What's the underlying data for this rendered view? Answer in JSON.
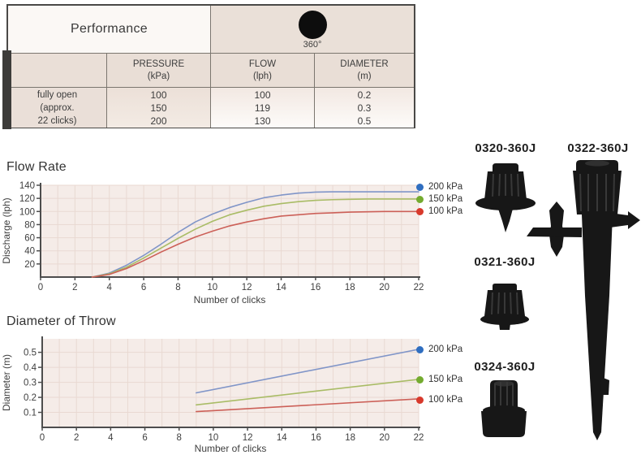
{
  "table": {
    "title": "Performance",
    "pattern": {
      "icon": "filled-circle-360",
      "label": "360°"
    },
    "header": {
      "pressure_label": "PRESSURE",
      "pressure_unit": "(kPa)",
      "flow_label": "FLOW",
      "flow_unit": "(lph)",
      "diameter_label": "DIAMETER",
      "diameter_unit": "(m)"
    },
    "row_label": {
      "line1": "fully open",
      "line2": "(approx.",
      "line3": "22 clicks)"
    },
    "rows": [
      {
        "pressure": "100",
        "flow": "100",
        "diameter": "0.2"
      },
      {
        "pressure": "150",
        "flow": "119",
        "diameter": "0.3"
      },
      {
        "pressure": "200",
        "flow": "130",
        "diameter": "0.5"
      }
    ]
  },
  "chart_data": [
    {
      "type": "line",
      "title": "Flow Rate",
      "xlabel": "Number of clicks",
      "ylabel": "Discharge (lph)",
      "xlim": [
        0,
        22
      ],
      "ylim": [
        0,
        140
      ],
      "grid": true,
      "legend_position": "right",
      "xticks": [
        {
          "v": 0,
          "t": "0"
        },
        {
          "v": 2,
          "t": "2"
        },
        {
          "v": 4,
          "t": "4"
        },
        {
          "v": 6,
          "t": "6"
        },
        {
          "v": 8,
          "t": "8"
        },
        {
          "v": 10,
          "t": "10"
        },
        {
          "v": 12,
          "t": "12"
        },
        {
          "v": 14,
          "t": "14"
        },
        {
          "v": 16,
          "t": "16"
        },
        {
          "v": 18,
          "t": "18"
        },
        {
          "v": 20,
          "t": "20"
        },
        {
          "v": 22,
          "t": "22"
        }
      ],
      "yticks": [
        {
          "v": 20,
          "t": "20"
        },
        {
          "v": 40,
          "t": "40"
        },
        {
          "v": 60,
          "t": "60"
        },
        {
          "v": 80,
          "t": "80"
        },
        {
          "v": 100,
          "t": "100"
        },
        {
          "v": 120,
          "t": "120"
        },
        {
          "v": 140,
          "t": "140"
        }
      ],
      "series": [
        {
          "name": "200 kPa",
          "pressure_kpa": 200,
          "line_color": "#8095c8",
          "dot_color": "#2f6ec0",
          "x": [
            3,
            4,
            5,
            6,
            7,
            8,
            9,
            10,
            11,
            12,
            13,
            14,
            15,
            16,
            17,
            18,
            19,
            20,
            21,
            22
          ],
          "y": [
            0,
            6,
            18,
            33,
            50,
            68,
            84,
            96,
            106,
            114,
            121,
            125,
            128,
            129.5,
            130,
            130,
            130,
            130,
            130,
            130
          ]
        },
        {
          "name": "150 kPa",
          "pressure_kpa": 150,
          "line_color": "#a9bc66",
          "dot_color": "#74ab2f",
          "x": [
            3,
            4,
            5,
            6,
            7,
            8,
            9,
            10,
            11,
            12,
            13,
            14,
            15,
            16,
            17,
            18,
            19,
            20,
            21,
            22
          ],
          "y": [
            0,
            5,
            15,
            29,
            44,
            59,
            73,
            85,
            95,
            102,
            108,
            112,
            115,
            117,
            118,
            118.5,
            119,
            119,
            119,
            119
          ]
        },
        {
          "name": "100 kPa",
          "pressure_kpa": 100,
          "line_color": "#cc6058",
          "dot_color": "#d8392c",
          "x": [
            3,
            4,
            5,
            6,
            7,
            8,
            9,
            10,
            11,
            12,
            13,
            14,
            15,
            16,
            17,
            18,
            19,
            20,
            21,
            22
          ],
          "y": [
            0,
            4,
            13,
            25,
            38,
            50,
            61,
            70,
            78,
            84,
            89,
            93,
            95,
            97,
            98,
            99,
            99.5,
            100,
            100,
            100
          ]
        }
      ]
    },
    {
      "type": "line",
      "title": "Diameter of Throw",
      "xlabel": "Number of clicks",
      "ylabel": "Diameter (m)",
      "xlim": [
        0,
        22
      ],
      "ylim": [
        0,
        0.59
      ],
      "grid": true,
      "legend_position": "right",
      "xticks": [
        {
          "v": 0,
          "t": "0"
        },
        {
          "v": 2,
          "t": "2"
        },
        {
          "v": 4,
          "t": "4"
        },
        {
          "v": 6,
          "t": "6"
        },
        {
          "v": 8,
          "t": "8"
        },
        {
          "v": 10,
          "t": "10"
        },
        {
          "v": 12,
          "t": "12"
        },
        {
          "v": 14,
          "t": "14"
        },
        {
          "v": 16,
          "t": "16"
        },
        {
          "v": 18,
          "t": "18"
        },
        {
          "v": 20,
          "t": "20"
        },
        {
          "v": 22,
          "t": "22"
        }
      ],
      "yticks": [
        {
          "v": 0.1,
          "t": "0.1"
        },
        {
          "v": 0.2,
          "t": "0.2"
        },
        {
          "v": 0.3,
          "t": "0.3"
        },
        {
          "v": 0.4,
          "t": "0.4"
        },
        {
          "v": 0.5,
          "t": "0.5"
        }
      ],
      "series": [
        {
          "name": "200 kPa",
          "pressure_kpa": 200,
          "line_color": "#8095c8",
          "dot_color": "#2f6ec0",
          "x": [
            9,
            22
          ],
          "y": [
            0.23,
            0.52
          ]
        },
        {
          "name": "150 kPa",
          "pressure_kpa": 150,
          "line_color": "#a9bc66",
          "dot_color": "#74ab2f",
          "x": [
            9,
            22
          ],
          "y": [
            0.15,
            0.32
          ]
        },
        {
          "name": "100 kPa",
          "pressure_kpa": 100,
          "line_color": "#cc6058",
          "dot_color": "#d8392c",
          "x": [
            9,
            22
          ],
          "y": [
            0.105,
            0.19
          ]
        }
      ]
    }
  ],
  "products": [
    {
      "code": "0320-360J"
    },
    {
      "code": "0322-360J"
    },
    {
      "code": "0321-360J"
    },
    {
      "code": "0324-360J"
    }
  ],
  "colors": {
    "series_200_line": "#8095c8",
    "series_200_dot": "#2f6ec0",
    "series_150_line": "#a9bc66",
    "series_150_dot": "#74ab2f",
    "series_100_line": "#cc6058",
    "series_100_dot": "#d8392c",
    "plot_background": "#f5ece8",
    "grid_line": "#e9d9d2",
    "axis": "#4d4d4d",
    "table_beige": "#eae0d8",
    "product_silhouette": "#171717"
  }
}
